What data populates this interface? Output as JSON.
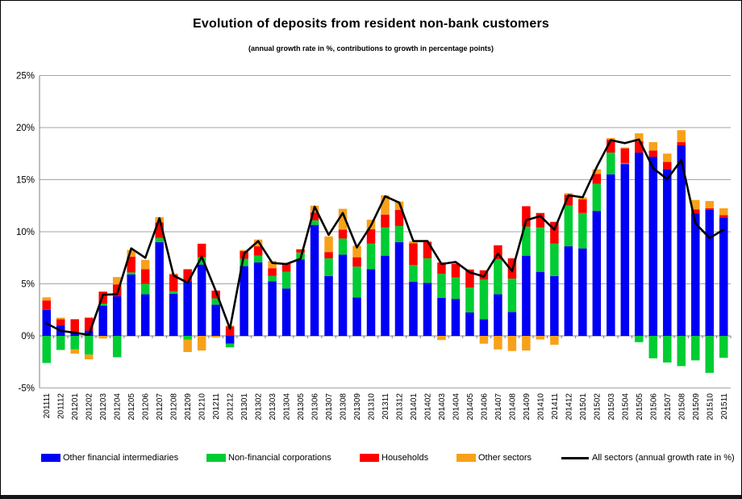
{
  "page": {
    "title": "Evolution of deposits from resident non-bank customers",
    "subtitle": "(annual growth rate in %, contributions to growth in percentage points)"
  },
  "chart_data": {
    "type": "bar",
    "subtype": "stacked-bar-with-line",
    "title": "Evolution of deposits from resident non-bank customers",
    "subtitle": "(annual growth rate in %, contributions to growth in percentage points)",
    "ylim": [
      -5,
      25
    ],
    "y_tick_step": 5,
    "y_ticks": [
      "25%",
      "20%",
      "15%",
      "10%",
      "5%",
      "0%",
      "-5%"
    ],
    "grid": true,
    "legend_position": "bottom",
    "categories": [
      "201111",
      "201112",
      "201201",
      "201202",
      "201203",
      "201204",
      "201205",
      "201206",
      "201207",
      "201208",
      "201209",
      "201210",
      "201211",
      "201212",
      "201301",
      "201302",
      "201303",
      "201304",
      "201305",
      "201306",
      "201307",
      "201308",
      "201309",
      "201310",
      "201311",
      "201312",
      "201401",
      "201402",
      "201403",
      "201404",
      "201405",
      "201406",
      "201407",
      "201408",
      "201409",
      "201410",
      "201411",
      "201412",
      "201501",
      "201502",
      "201503",
      "201504",
      "201505",
      "201506",
      "201507",
      "201508",
      "201509",
      "201510",
      "201511"
    ],
    "series": [
      {
        "name": "Other financial intermediaries",
        "color": "#0000F5",
        "values": [
          2.5,
          1.0,
          0.3,
          0.5,
          2.9,
          3.8,
          5.9,
          4.0,
          9.0,
          4.05,
          5.25,
          6.85,
          3.0,
          -0.75,
          6.7,
          7.05,
          5.25,
          4.55,
          7.35,
          10.65,
          5.75,
          7.8,
          3.7,
          6.4,
          7.7,
          9.0,
          5.2,
          5.1,
          3.65,
          3.55,
          2.25,
          1.6,
          4.0,
          2.3,
          7.7,
          6.15,
          5.75,
          8.6,
          8.4,
          12.0,
          15.5,
          16.5,
          17.6,
          17.2,
          16.0,
          18.3,
          11.75,
          12.1,
          11.35
        ]
      },
      {
        "name": "Non-financial corporations",
        "color": "#00CC33",
        "values": [
          -2.6,
          -1.35,
          -1.3,
          -1.8,
          0.2,
          -2.05,
          0.2,
          1.0,
          0.4,
          0.25,
          -0.35,
          0.7,
          0.6,
          -0.35,
          0.7,
          0.65,
          0.5,
          1.6,
          0.65,
          0.45,
          1.7,
          1.55,
          2.95,
          2.45,
          2.7,
          1.55,
          1.6,
          2.35,
          2.3,
          2.05,
          2.4,
          3.8,
          3.35,
          3.2,
          2.8,
          4.25,
          3.1,
          3.9,
          3.4,
          2.6,
          2.1,
          0.1,
          -0.6,
          -2.15,
          -2.55,
          -2.9,
          -2.35,
          -3.55,
          -2.1
        ]
      },
      {
        "name": "Households",
        "color": "#FE0000",
        "values": [
          0.9,
          0.6,
          1.3,
          1.25,
          1.15,
          1.15,
          1.5,
          1.4,
          1.5,
          1.6,
          1.15,
          1.3,
          0.75,
          0.9,
          0.75,
          0.9,
          0.75,
          0.75,
          0.3,
          0.75,
          0.6,
          0.85,
          0.9,
          1.4,
          1.25,
          1.55,
          2.1,
          1.55,
          1.1,
          1.3,
          1.7,
          0.9,
          1.35,
          1.95,
          1.95,
          1.4,
          2.1,
          1.05,
          1.3,
          0.95,
          1.25,
          1.4,
          1.1,
          0.6,
          0.7,
          0.3,
          0.4,
          0.15,
          0.25
        ]
      },
      {
        "name": "Other sectors",
        "color": "#F7A11A",
        "values": [
          0.3,
          0.15,
          -0.4,
          -0.45,
          -0.25,
          0.7,
          0.65,
          0.9,
          0.5,
          0.1,
          -1.2,
          -1.4,
          -0.15,
          0.1,
          0.1,
          0.65,
          0.7,
          0.1,
          0.05,
          0.65,
          1.5,
          2.0,
          1.1,
          0.9,
          1.85,
          0.8,
          0.2,
          0.1,
          -0.4,
          0.1,
          0.05,
          -0.75,
          -1.3,
          -1.45,
          -1.4,
          -0.35,
          -0.85,
          0.15,
          0.2,
          0.45,
          0.15,
          0.1,
          0.75,
          0.8,
          0.8,
          1.15,
          0.9,
          0.7,
          0.65
        ]
      }
    ],
    "line_series": {
      "name": "All sectors (annual growth rate in %)",
      "color": "#000000",
      "values": [
        1.2,
        0.5,
        0.3,
        0.1,
        3.95,
        4.0,
        8.4,
        7.5,
        11.3,
        5.8,
        5.1,
        7.6,
        4.3,
        0.7,
        7.9,
        9.1,
        7.0,
        6.9,
        7.4,
        12.4,
        9.7,
        11.8,
        8.5,
        10.6,
        13.4,
        12.8,
        9.1,
        9.1,
        6.9,
        7.1,
        6.1,
        5.7,
        7.9,
        6.2,
        11.1,
        11.5,
        10.2,
        13.5,
        13.3,
        16.2,
        18.8,
        18.5,
        18.85,
        16.1,
        15.05,
        16.9,
        10.8,
        9.4,
        10.2
      ]
    }
  },
  "legend": {
    "items": [
      {
        "label": "Other financial intermediaries",
        "color": "#0000F5",
        "type": "swatch"
      },
      {
        "label": "Non-financial corporations",
        "color": "#00CC33",
        "type": "swatch"
      },
      {
        "label": "Households",
        "color": "#FE0000",
        "type": "swatch"
      },
      {
        "label": "Other sectors",
        "color": "#F7A11A",
        "type": "swatch"
      },
      {
        "label": "All sectors (annual growth rate in %)",
        "color": "#000000",
        "type": "line"
      }
    ]
  },
  "colors": {
    "gridline": "#A6A6A6",
    "zero_axis": "#7F7F7F",
    "text": "#000000"
  }
}
